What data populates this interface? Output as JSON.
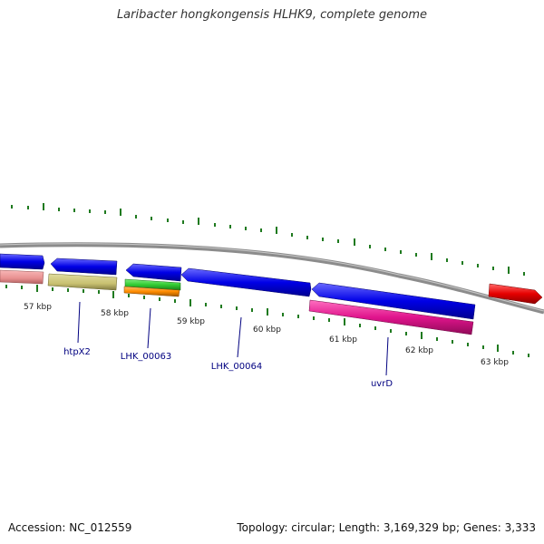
{
  "title": "Laribacter hongkongensis HLHK9, complete genome",
  "footer": {
    "accession_label": "Accession:",
    "accession": "NC_012559",
    "topology_label": "Topology:",
    "topology": "circular",
    "length_label": "Length:",
    "length": "3,169,329 bp",
    "genes_label": "Genes:",
    "genes": "3,333"
  },
  "scale": {
    "unit": "kbp",
    "labels": [
      "57 kbp",
      "58 kbp",
      "59 kbp",
      "60 kbp",
      "61 kbp",
      "62 kbp",
      "63 kbp"
    ]
  },
  "feature_labels": [
    {
      "name": "htpX2"
    },
    {
      "name": "LHK_00063"
    },
    {
      "name": "LHK_00064"
    },
    {
      "name": "uvrD"
    }
  ],
  "colors": {
    "backbone": "#8c8c8c",
    "tick": "#1f7a1f",
    "cds": "#0000e6",
    "label_text": "#000080",
    "feature_red": "#e60000",
    "feature_pink": "#e0148c",
    "feature_salmon": "#e89090",
    "feature_khaki": "#c8c070",
    "feature_green": "#33cc33",
    "feature_orange": "#ff8c00"
  }
}
